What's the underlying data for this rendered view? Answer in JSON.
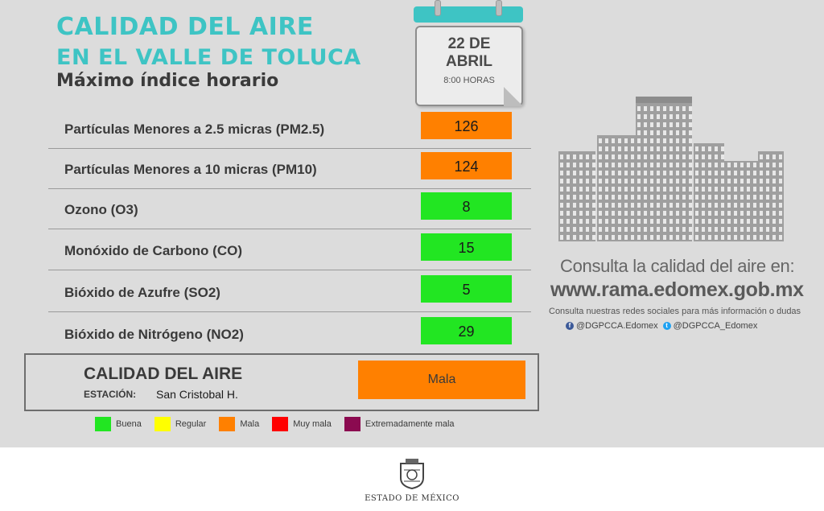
{
  "header": {
    "title_line1": "CALIDAD DEL AIRE",
    "title_line2": "EN EL VALLE DE TOLUCA",
    "subtitle": "Máximo índice horario"
  },
  "calendar": {
    "date": "22 DE\nABRIL",
    "time": "8:00 HORAS"
  },
  "pollutants": [
    {
      "name": "Partículas Menores a 2.5 micras (PM2.5)",
      "value": "126",
      "color": "#ff8000"
    },
    {
      "name": "Partículas Menores a 10 micras (PM10)",
      "value": "124",
      "color": "#ff8000"
    },
    {
      "name": "Ozono (O3)",
      "value": "8",
      "color": "#22e622"
    },
    {
      "name": "Monóxido de Carbono (CO)",
      "value": "15",
      "color": "#22e622"
    },
    {
      "name": "Bióxido de Azufre (SO2)",
      "value": "5",
      "color": "#22e622"
    },
    {
      "name": "Bióxido de Nitrógeno (NO2)",
      "value": "29",
      "color": "#22e622"
    }
  ],
  "summary": {
    "title": "CALIDAD DEL AIRE",
    "station_label": "ESTACIÓN:",
    "station": "San Cristobal H.",
    "status": "Mala",
    "status_color": "#ff8000"
  },
  "legend": [
    {
      "label": "Buena",
      "color": "#22e622"
    },
    {
      "label": "Regular",
      "color": "#ffff00"
    },
    {
      "label": "Mala",
      "color": "#ff8000"
    },
    {
      "label": "Muy mala",
      "color": "#ff0000"
    },
    {
      "label": "Extremadamente mala",
      "color": "#8b0a50"
    }
  ],
  "consult": {
    "line1": "Consulta la calidad del aire en:",
    "url": "www.rama.edomex.gob.mx",
    "line2": "Consulta nuestras redes sociales para más información o dudas",
    "facebook": "@DGPCCA.Edomex",
    "twitter": "@DGPCCA_Edomex"
  },
  "icons": {
    "facebook": "facebook-icon",
    "twitter": "twitter-icon",
    "buildings": "city-buildings-icon",
    "seal": "state-seal-icon"
  },
  "footer": {
    "text": "ESTADO DE MÉXICO"
  }
}
